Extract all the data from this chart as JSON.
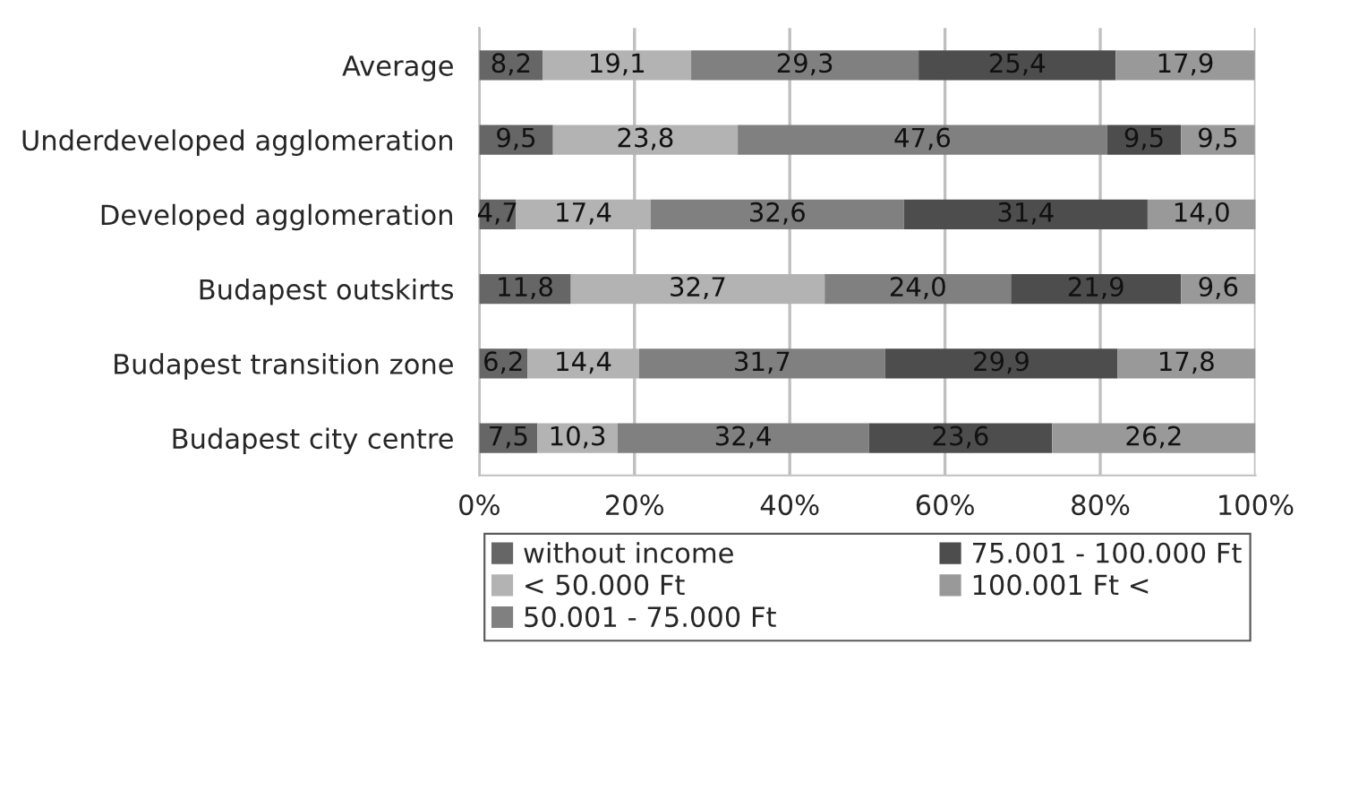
{
  "chart_data": {
    "type": "bar",
    "orientation": "horizontal",
    "stacked": true,
    "categories": [
      "Average",
      "Underdeveloped agglomeration",
      "Developed agglomeration",
      "Budapest outskirts",
      "Budapest transition zone",
      "Budapest city centre"
    ],
    "series": [
      {
        "name": "without income",
        "color": "#666666",
        "values": [
          8.2,
          9.5,
          4.7,
          11.8,
          6.2,
          7.5
        ],
        "value_labels": [
          "8,2",
          "9,5",
          "4,7",
          "11,8",
          "6,2",
          "7,5"
        ]
      },
      {
        "name": "< 50.000 Ft",
        "color": "#b3b3b3",
        "values": [
          19.1,
          23.8,
          17.4,
          32.7,
          14.4,
          10.3
        ],
        "value_labels": [
          "19,1",
          "23,8",
          "17,4",
          "32,7",
          "14,4",
          "10,3"
        ]
      },
      {
        "name": "50.001 - 75.000 Ft",
        "color": "#808080",
        "values": [
          29.3,
          47.6,
          32.6,
          24.0,
          31.7,
          32.4
        ],
        "value_labels": [
          "29,3",
          "47,6",
          "32,6",
          "24,0",
          "31,7",
          "32,4"
        ]
      },
      {
        "name": "75.001 - 100.000 Ft",
        "color": "#4d4d4d",
        "values": [
          25.4,
          9.5,
          31.4,
          21.9,
          29.9,
          23.6
        ],
        "value_labels": [
          "25,4",
          "9,5",
          "31,4",
          "21,9",
          "29,9",
          "23,6"
        ]
      },
      {
        "name": "100.001 Ft <",
        "color": "#999999",
        "values": [
          17.9,
          9.5,
          14.0,
          9.6,
          17.8,
          26.2
        ],
        "value_labels": [
          "17,9",
          "9,5",
          "14,0",
          "9,6",
          "17,8",
          "26,2"
        ]
      }
    ],
    "xlim": [
      0,
      100
    ],
    "xticks": [
      {
        "value": 0,
        "label": "0%"
      },
      {
        "value": 20,
        "label": "20%"
      },
      {
        "value": 40,
        "label": "40%"
      },
      {
        "value": 60,
        "label": "60%"
      },
      {
        "value": 80,
        "label": "80%"
      },
      {
        "value": 100,
        "label": "100%"
      }
    ],
    "grid": "x",
    "legend": "bottom"
  }
}
